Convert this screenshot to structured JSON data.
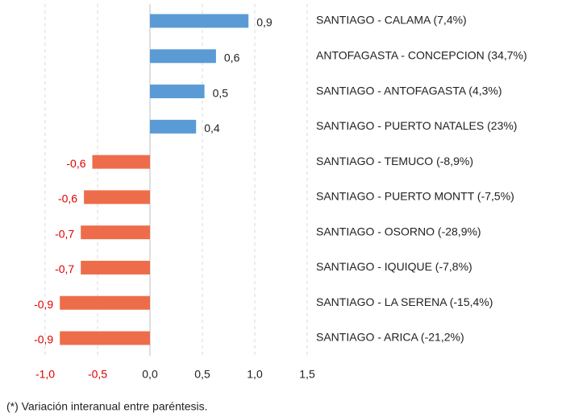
{
  "chart_data": {
    "type": "bar",
    "orientation": "horizontal",
    "categories": [
      "SANTIAGO - CALAMA (7,4%)",
      "ANTOFAGASTA - CONCEPCION (34,7%)",
      "SANTIAGO - ANTOFAGASTA (4,3%)",
      "SANTIAGO - PUERTO NATALES (23%)",
      "SANTIAGO - TEMUCO (-8,9%)",
      "SANTIAGO - PUERTO MONTT (-7,5%)",
      "SANTIAGO - OSORNO (-28,9%)",
      "SANTIAGO - IQUIQUE (-7,8%)",
      "SANTIAGO - LA SERENA (-15,4%)",
      "SANTIAGO - ARICA (-21,2%)"
    ],
    "values": [
      0.94,
      0.63,
      0.52,
      0.44,
      -0.55,
      -0.63,
      -0.66,
      -0.66,
      -0.86,
      -0.86
    ],
    "value_labels": [
      "0,9",
      "0,6",
      "0,5",
      "0,4",
      "-0,6",
      "-0,6",
      "-0,7",
      "-0,7",
      "-0,9",
      "-0,9"
    ],
    "positive_color": "#5b9bd5",
    "negative_color": "#ed6d4a",
    "negative_label_color": "#e00000",
    "xlim": [
      -1.0,
      1.5
    ],
    "xticks": [
      {
        "value": -1.0,
        "label": "-1,0"
      },
      {
        "value": -0.5,
        "label": "-0,5"
      },
      {
        "value": 0,
        "label": "0,0"
      },
      {
        "value": 0.5,
        "label": "0,5"
      },
      {
        "value": 1.0,
        "label": "1,0"
      },
      {
        "value": 1.5,
        "label": "1,5"
      }
    ],
    "grid": true,
    "footnote": "(*) Variación interanual entre paréntesis."
  }
}
